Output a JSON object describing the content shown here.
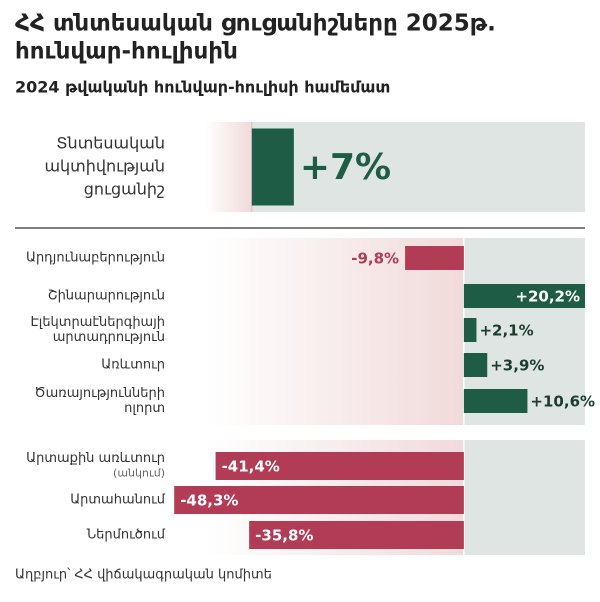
{
  "title": [
    "ՀՀ տնտեսական ցուցանիշները 2025թ.",
    "հունվար-հուլիսին"
  ],
  "subtitle": "2024 թվականի հունվար-հուլիսի համեմատ",
  "source": "Աղբյուր՝ ՀՀ վիճակագրական կոմիտե",
  "chart_data": [
    {
      "type": "bar",
      "orientation": "horizontal",
      "categories": [
        [
          "Տնտեսական",
          "ակտիվության",
          "ցուցանիշ"
        ]
      ],
      "values": [
        7
      ],
      "value_labels": [
        "+7%"
      ],
      "xlim": [
        -7.8,
        55.5
      ],
      "color_positive": "#1f5c46",
      "color_negative": "#b23b56"
    },
    {
      "type": "bar",
      "orientation": "horizontal",
      "categories": [
        [
          "Արդյունաբերություն"
        ],
        [
          "Շինարարություն"
        ],
        [
          "Էլեկտրաէներգիայի",
          "արտադրություն"
        ],
        [
          "Առևտուր"
        ],
        [
          "Ծառայությունների",
          "ոլորտ"
        ]
      ],
      "values": [
        -9.8,
        20.2,
        2.1,
        3.9,
        10.6
      ],
      "value_labels": [
        "-9,8%",
        "+20,2%",
        "+2,1%",
        "+3,9%",
        "+10,6%"
      ],
      "xlim": [
        -49.5,
        20.2
      ],
      "color_positive": "#1f5c46",
      "color_negative": "#b23b56"
    },
    {
      "type": "bar",
      "orientation": "horizontal",
      "categories": [
        [
          "Արտաքին առևտուր"
        ],
        [
          "Արտահանում"
        ],
        [
          "Ներմուծում"
        ]
      ],
      "category_notes": [
        "(անկում)",
        null,
        null
      ],
      "values": [
        -41.4,
        -48.3,
        -35.8
      ],
      "value_labels": [
        "-41,4%",
        "-48,3%",
        "-35,8%"
      ],
      "xlim": [
        -49.5,
        20.2
      ],
      "color_positive": "#1f5c46",
      "color_negative": "#b23b56"
    }
  ]
}
